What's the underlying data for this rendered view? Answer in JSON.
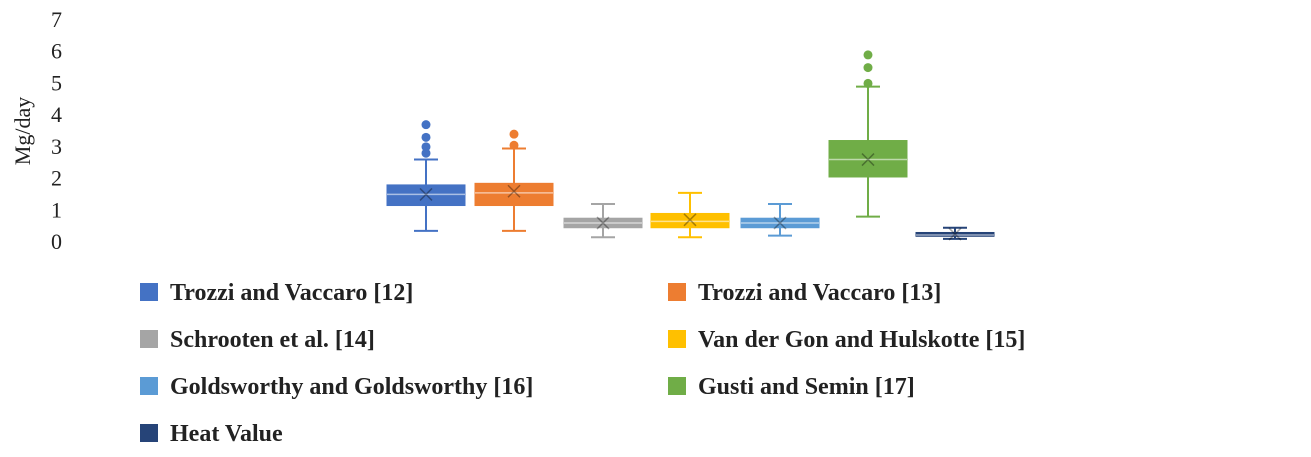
{
  "chart_data": {
    "type": "box",
    "ylabel": "Mg/day",
    "ylim": [
      0,
      7
    ],
    "y_ticks": [
      0,
      1,
      2,
      3,
      4,
      5,
      6,
      7
    ],
    "grid": false,
    "legend_placement": "bottom",
    "series": [
      {
        "name": "Trozzi and Vaccaro [12]",
        "color": "#4472c4",
        "whisker_low": 0.35,
        "q1": 1.15,
        "median": 1.5,
        "q3": 1.8,
        "whisker_high": 2.6,
        "mean": 1.5,
        "outliers": [
          2.8,
          3.0,
          3.3,
          3.7
        ]
      },
      {
        "name": "Trozzi and Vaccaro [13]",
        "color": "#ed7d31",
        "whisker_low": 0.35,
        "q1": 1.15,
        "median": 1.55,
        "q3": 1.85,
        "whisker_high": 2.95,
        "mean": 1.6,
        "outliers": [
          3.05,
          3.4
        ]
      },
      {
        "name": "Schrooten et al. [14]",
        "color": "#a5a5a5",
        "whisker_low": 0.15,
        "q1": 0.45,
        "median": 0.6,
        "q3": 0.75,
        "whisker_high": 1.2,
        "mean": 0.6,
        "outliers": []
      },
      {
        "name": "Van der Gon and Hulskotte [15]",
        "color": "#ffc000",
        "whisker_low": 0.15,
        "q1": 0.45,
        "median": 0.65,
        "q3": 0.9,
        "whisker_high": 1.55,
        "mean": 0.7,
        "outliers": []
      },
      {
        "name": "Goldsworthy and Goldsworthy [16]",
        "color": "#5b9bd5",
        "whisker_low": 0.2,
        "q1": 0.45,
        "median": 0.6,
        "q3": 0.75,
        "whisker_high": 1.2,
        "mean": 0.6,
        "outliers": []
      },
      {
        "name": "Gusti and Semin [17]",
        "color": "#70ad47",
        "whisker_low": 0.8,
        "q1": 2.05,
        "median": 2.6,
        "q3": 3.2,
        "whisker_high": 4.9,
        "mean": 2.6,
        "outliers": [
          5.0,
          5.5,
          5.9
        ]
      },
      {
        "name": "Heat Value",
        "color": "#264478",
        "whisker_low": 0.1,
        "q1": 0.18,
        "median": 0.22,
        "q3": 0.3,
        "whisker_high": 0.45,
        "mean": 0.25,
        "outliers": []
      }
    ]
  }
}
